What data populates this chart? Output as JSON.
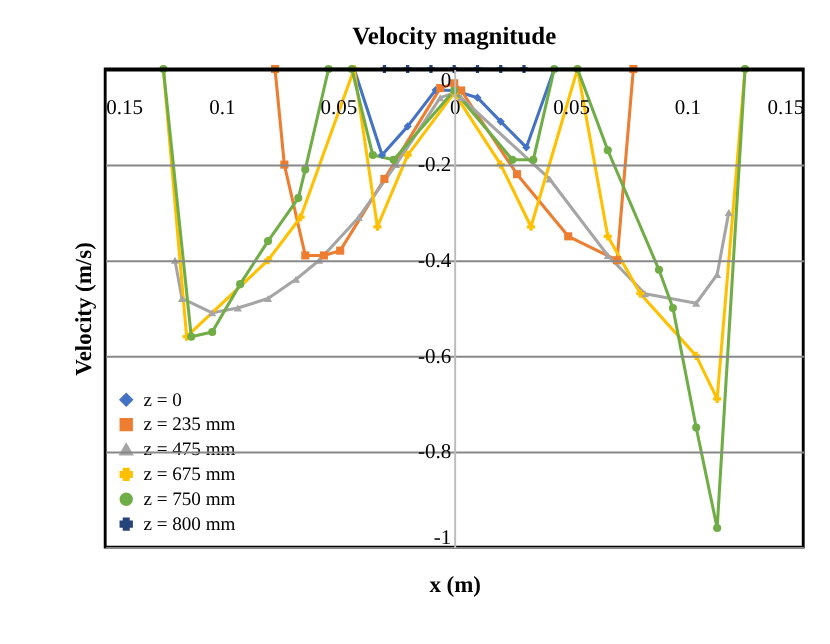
{
  "chart_data": {
    "type": "line",
    "title": "Velocity magnitude",
    "xlabel": "x (m)",
    "ylabel": "Velocity (m/s)",
    "xlim": [
      -0.15,
      0.15
    ],
    "ylim": [
      -1,
      0
    ],
    "xticks": [
      {
        "value": -0.15,
        "label": "0.15"
      },
      {
        "value": -0.1,
        "label": "0.1"
      },
      {
        "value": -0.05,
        "label": "0.05"
      },
      0,
      0.05,
      0.1,
      0.15
    ],
    "yticks": [
      -1,
      -0.8,
      -0.6,
      -0.4,
      -0.2,
      0
    ],
    "grid": "y",
    "legend": "bottom left",
    "line_style": "solid",
    "series": [
      {
        "name": "z = 0",
        "color": "#4472c4",
        "marker": "diamond",
        "x": [
          -0.043,
          -0.031,
          -0.02,
          -0.008,
          0,
          0.01,
          0.02,
          0.031,
          0.043
        ],
        "values": [
          0,
          -0.18,
          -0.12,
          -0.044,
          -0.045,
          -0.06,
          -0.11,
          -0.164,
          0
        ]
      },
      {
        "name": "z = 235 mm",
        "color": "#ed7d31",
        "marker": "square",
        "x": [
          -0.077,
          -0.073,
          -0.064,
          -0.056,
          -0.049,
          -0.03,
          -0.006,
          0,
          0.003,
          0.027,
          0.049,
          0.07,
          0.077
        ],
        "values": [
          0,
          -0.2,
          -0.39,
          -0.39,
          -0.38,
          -0.23,
          -0.04,
          -0.03,
          -0.045,
          -0.22,
          -0.35,
          -0.4,
          0
        ]
      },
      {
        "name": "z = 475 mm",
        "color": "#a5a5a5",
        "marker": "triangle",
        "x": [
          -0.12,
          -0.117,
          -0.104,
          -0.093,
          -0.08,
          -0.068,
          -0.058,
          -0.041,
          -0.025,
          -0.006,
          0,
          0.003,
          0.041,
          0.066,
          0.082,
          0.104,
          0.113,
          0.118
        ],
        "values": [
          -0.4,
          -0.48,
          -0.51,
          -0.5,
          -0.48,
          -0.44,
          -0.4,
          -0.31,
          -0.2,
          -0.06,
          -0.05,
          -0.06,
          -0.23,
          -0.39,
          -0.47,
          -0.49,
          -0.43,
          -0.3
        ]
      },
      {
        "name": "z = 675 mm",
        "color": "#ffc000",
        "marker": "cross",
        "x": [
          -0.125,
          -0.115,
          -0.08,
          -0.066,
          -0.043,
          -0.033,
          -0.02,
          0,
          0.02,
          0.033,
          0.053,
          0.066,
          0.08,
          0.104,
          0.113,
          0.125
        ],
        "values": [
          0,
          -0.56,
          -0.4,
          -0.31,
          0,
          -0.33,
          -0.18,
          -0.05,
          -0.2,
          -0.33,
          0,
          -0.35,
          -0.47,
          -0.6,
          -0.69,
          0
        ]
      },
      {
        "name": "z = 750 mm",
        "color": "#70ad47",
        "marker": "circle",
        "x": [
          -0.125,
          -0.113,
          -0.104,
          -0.092,
          -0.08,
          -0.067,
          -0.064,
          -0.054,
          -0.044,
          -0.035,
          -0.026,
          0,
          0.025,
          0.034,
          0.043,
          0.053,
          0.066,
          0.088,
          0.094,
          0.104,
          0.113,
          0.125
        ],
        "values": [
          0,
          -0.56,
          -0.55,
          -0.45,
          -0.36,
          -0.27,
          -0.21,
          0,
          0,
          -0.18,
          -0.19,
          -0.045,
          -0.19,
          -0.19,
          0,
          0,
          -0.17,
          -0.42,
          -0.5,
          -0.75,
          -0.96,
          0
        ]
      },
      {
        "name": "z = 800 mm",
        "color": "#264478",
        "marker": "cross",
        "x": [
          -0.03,
          -0.02,
          -0.01,
          0,
          0.01,
          0.02,
          0.03
        ],
        "values": [
          0,
          0,
          0,
          0,
          0,
          0,
          0
        ]
      }
    ]
  }
}
